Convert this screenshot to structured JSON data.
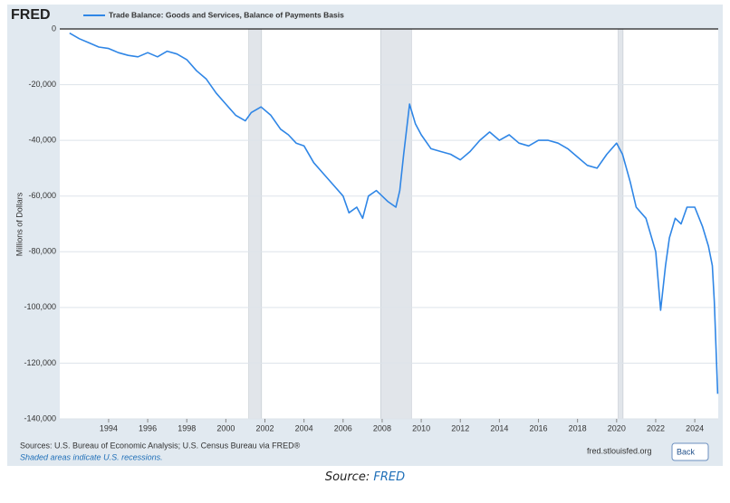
{
  "logo": "FRED",
  "footer": {
    "sources": "Sources: U.S. Bureau of Economic Analysis; U.S. Census Bureau via FRED®",
    "note": "Shaded areas indicate U.S. recessions.",
    "site": "fred.stlouisfed.org",
    "back": "Back"
  },
  "caption": {
    "prefix": "Source:",
    "link": "FRED"
  },
  "chart_data": {
    "type": "line",
    "ylabel": "Millions of Dollars",
    "series": [
      {
        "name": "Trade Balance: Goods and Services, Balance of Payments Basis",
        "color": "#2f86e6",
        "x": [
          1992.0,
          1992.5,
          1993.0,
          1993.5,
          1994.0,
          1994.5,
          1995.0,
          1995.5,
          1996.0,
          1996.5,
          1997.0,
          1997.5,
          1998.0,
          1998.5,
          1999.0,
          1999.5,
          2000.0,
          2000.5,
          2001.0,
          2001.3,
          2001.8,
          2002.3,
          2002.8,
          2003.2,
          2003.6,
          2004.0,
          2004.5,
          2005.0,
          2005.5,
          2006.0,
          2006.3,
          2006.7,
          2007.0,
          2007.3,
          2007.7,
          2008.0,
          2008.3,
          2008.7,
          2008.9,
          2009.1,
          2009.4,
          2009.7,
          2010.0,
          2010.5,
          2011.0,
          2011.5,
          2012.0,
          2012.5,
          2013.0,
          2013.5,
          2014.0,
          2014.5,
          2015.0,
          2015.5,
          2016.0,
          2016.5,
          2017.0,
          2017.5,
          2018.0,
          2018.5,
          2019.0,
          2019.5,
          2020.0,
          2020.3,
          2020.7,
          2021.0,
          2021.5,
          2022.0,
          2022.25,
          2022.5,
          2022.7,
          2023.0,
          2023.3,
          2023.6,
          2024.0,
          2024.4,
          2024.7,
          2024.9,
          2025.0,
          2025.17
        ],
        "values": [
          -1500,
          -3500,
          -5000,
          -6500,
          -7000,
          -8500,
          -9500,
          -10000,
          -8500,
          -10000,
          -8000,
          -9000,
          -11000,
          -15000,
          -18000,
          -23000,
          -27000,
          -31000,
          -33000,
          -30000,
          -28000,
          -31000,
          -36000,
          -38000,
          -41000,
          -42000,
          -48000,
          -52000,
          -56000,
          -60000,
          -66000,
          -64000,
          -68000,
          -60000,
          -58000,
          -60000,
          -62000,
          -64000,
          -58000,
          -45000,
          -27000,
          -34000,
          -38000,
          -43000,
          -44000,
          -45000,
          -47000,
          -44000,
          -40000,
          -37000,
          -40000,
          -38000,
          -41000,
          -42000,
          -40000,
          -40000,
          -41000,
          -43000,
          -46000,
          -49000,
          -50000,
          -45000,
          -41000,
          -45000,
          -55000,
          -64000,
          -68000,
          -80000,
          -101000,
          -85000,
          -75000,
          -68000,
          -70000,
          -64000,
          -64000,
          -71000,
          -78000,
          -85000,
          -98000,
          -131000
        ]
      }
    ],
    "recessions": [
      [
        2001.17,
        2001.83
      ],
      [
        2007.92,
        2009.5
      ],
      [
        2020.08,
        2020.33
      ]
    ],
    "xlim": [
      1991.5,
      2025.2
    ],
    "xticks": [
      1994,
      1996,
      1998,
      2000,
      2002,
      2004,
      2006,
      2008,
      2010,
      2012,
      2014,
      2016,
      2018,
      2020,
      2022,
      2024
    ],
    "ylim": [
      -140000,
      0
    ],
    "yticks": [
      0,
      {
        "value": -20000,
        "label": "-20,000"
      },
      {
        "value": -40000,
        "label": "-40,000"
      },
      {
        "value": -60000,
        "label": "-60,000"
      },
      {
        "value": -80000,
        "label": "-80,000"
      },
      {
        "value": -100000,
        "label": "-100,000"
      },
      {
        "value": -120000,
        "label": "-120,000"
      },
      {
        "value": -140000,
        "label": "-140,000"
      }
    ],
    "grid": true
  }
}
